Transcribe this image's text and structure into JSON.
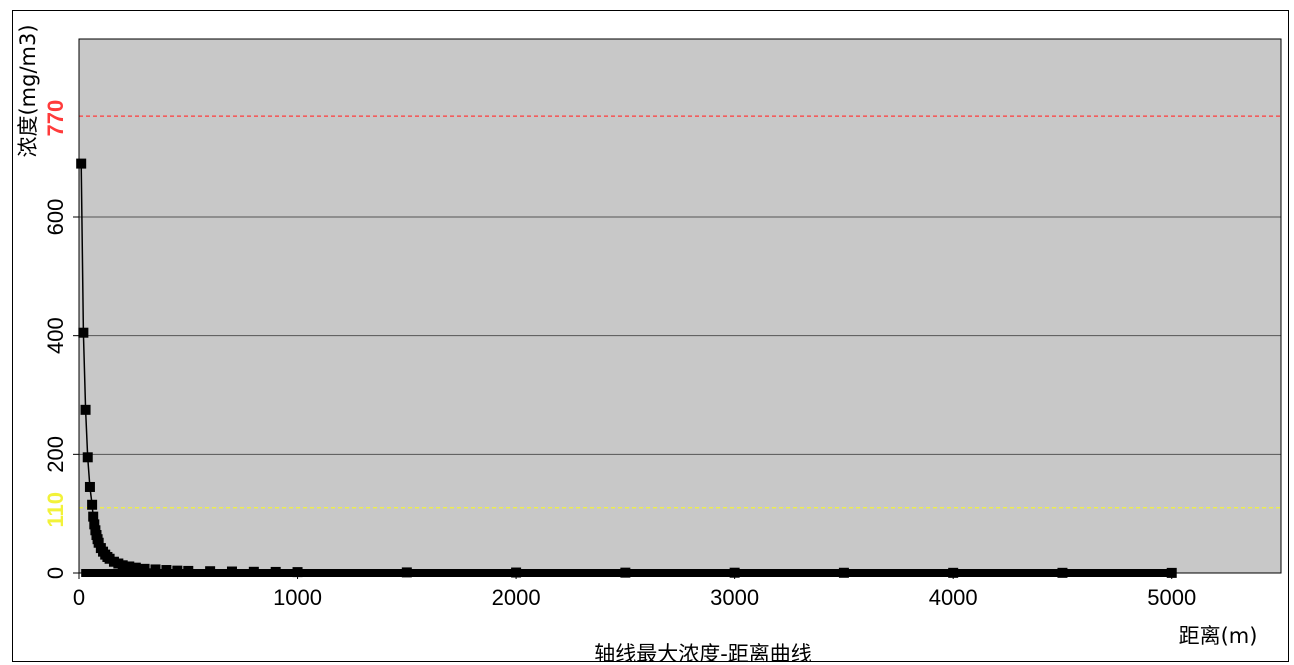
{
  "chart_data": {
    "type": "scatter",
    "title": "轴线最大浓度-距离曲线",
    "xlabel": "距离(m)",
    "ylabel": "浓度(mg/m3)",
    "xlim": [
      0,
      5500
    ],
    "ylim": [
      0,
      900
    ],
    "x_ticks": [
      "0",
      "1000",
      "2000",
      "3000",
      "4000",
      "5000"
    ],
    "y_ticks": [
      "0",
      "200",
      "400",
      "600"
    ],
    "grid": true,
    "legend": "none",
    "colors": {
      "plot_background": "#c8c8c8",
      "grid": "#555555",
      "series": "#000000"
    },
    "thresholds": [
      {
        "label": "770",
        "value": 770,
        "color": "#ff3b3b"
      },
      {
        "label": "110",
        "value": 110,
        "color": "#f2f23a"
      }
    ],
    "series": [
      {
        "x": [
          10,
          20,
          30,
          40,
          50,
          60,
          65,
          70,
          75,
          80,
          85,
          90,
          100,
          110,
          120,
          130,
          140,
          160,
          180,
          200,
          230,
          260,
          300,
          350,
          400,
          450,
          500,
          600,
          700,
          800,
          900,
          1000,
          1500,
          2000,
          2500,
          3000,
          3500,
          4000,
          4500,
          5000
        ],
        "y": [
          690,
          405,
          275,
          195,
          145,
          115,
          95,
          82,
          72,
          64,
          57,
          51,
          42,
          36,
          31,
          27,
          24,
          19,
          16,
          13,
          11,
          9,
          7,
          6,
          5,
          4,
          3.5,
          3,
          2.5,
          2,
          1.8,
          1.5,
          1,
          0.8,
          0.6,
          0.5,
          0.4,
          0.3,
          0.3,
          0.2
        ]
      }
    ]
  }
}
